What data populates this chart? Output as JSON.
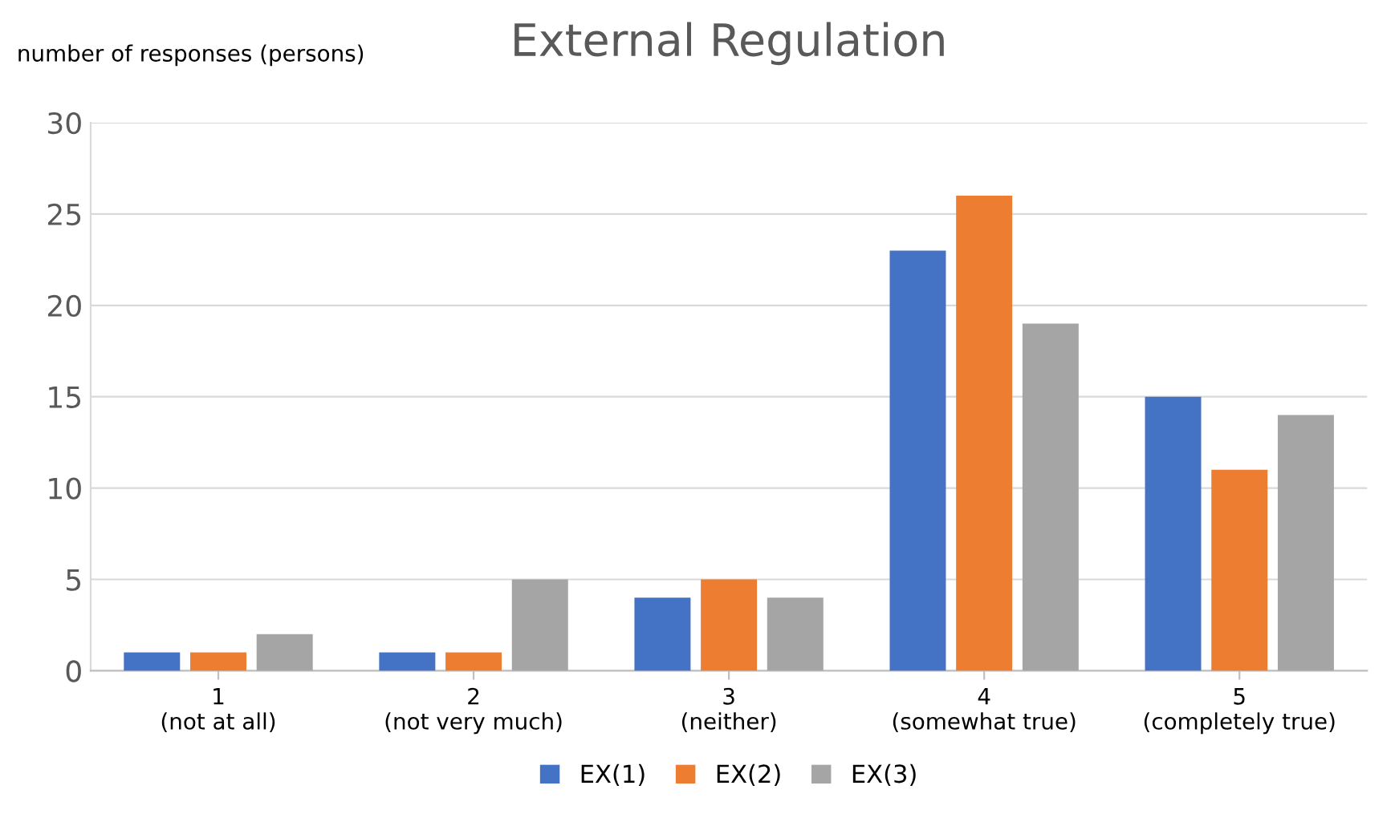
{
  "chart_data": {
    "type": "bar",
    "title": "External Regulation",
    "ylabel": "number of responses (persons)",
    "categories": [
      "1\n(not at all)",
      "2\n(not very much)",
      "3\n(neither)",
      "4\n(somewhat true)",
      "5\n(completely true)"
    ],
    "series": [
      {
        "name": "EX(1)",
        "color": "#4472c4",
        "values": [
          1,
          1,
          4,
          23,
          15
        ]
      },
      {
        "name": "EX(2)",
        "color": "#ed7d31",
        "values": [
          1,
          1,
          5,
          26,
          11
        ]
      },
      {
        "name": "EX(3)",
        "color": "#a5a5a5",
        "values": [
          2,
          5,
          4,
          19,
          14
        ]
      }
    ],
    "ylim": [
      0,
      30
    ],
    "yticks": [
      0,
      5,
      10,
      15,
      20,
      25,
      30
    ],
    "grid": "y",
    "legend": "bottom"
  }
}
